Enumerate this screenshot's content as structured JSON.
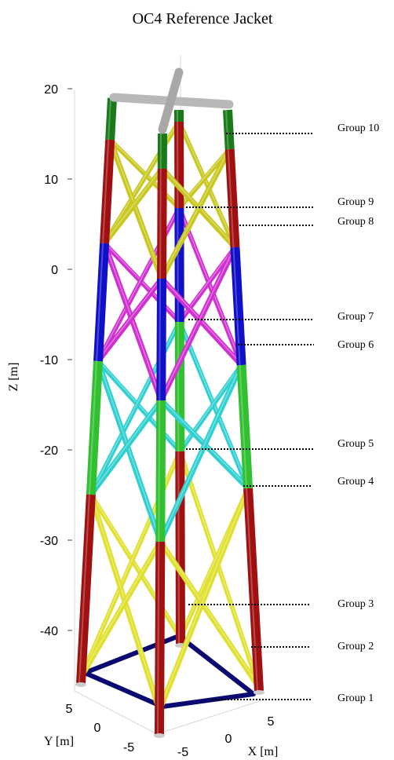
{
  "title": "OC4 Reference Jacket",
  "z_axis": {
    "label": "Z [m]",
    "ticks": [
      20,
      10,
      0,
      -10,
      -20,
      -30,
      -40
    ]
  },
  "y_axis": {
    "label": "Y [m]",
    "ticks": [
      5,
      0,
      -5
    ]
  },
  "x_axis": {
    "label": "X [m]",
    "ticks": [
      -5,
      0,
      5
    ]
  },
  "groups": [
    "Group 10",
    "Group 9",
    "Group 8",
    "Group 7",
    "Group 6",
    "Group 5",
    "Group 4",
    "Group 3",
    "Group 2",
    "Group 1"
  ]
}
